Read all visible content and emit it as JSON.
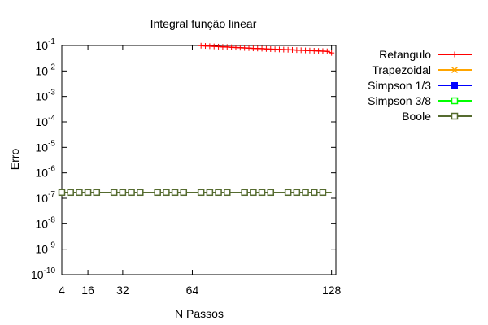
{
  "chart_data": {
    "type": "line",
    "title": "Integral função linear",
    "xlabel": "N Passos",
    "ylabel": "Erro",
    "xlim": [
      4,
      130
    ],
    "ylim_exponent": [
      -10,
      -1
    ],
    "y_scale": "log",
    "grid": false,
    "legend_position": "top-right outside",
    "x_ticks": [
      {
        "value": 4,
        "label": "4"
      },
      {
        "value": 16,
        "label": "16"
      },
      {
        "value": 32,
        "label": "32"
      },
      {
        "value": 64,
        "label": "64"
      },
      {
        "value": 128,
        "label": "128"
      }
    ],
    "y_ticks": [
      {
        "exp": -1,
        "label": "-1"
      },
      {
        "exp": -2,
        "label": "-2"
      },
      {
        "exp": -3,
        "label": "-3"
      },
      {
        "exp": -4,
        "label": "-4"
      },
      {
        "exp": -5,
        "label": "-5"
      },
      {
        "exp": -6,
        "label": "-6"
      },
      {
        "exp": -7,
        "label": "-7"
      },
      {
        "exp": -8,
        "label": "-8"
      },
      {
        "exp": -9,
        "label": "-9"
      },
      {
        "exp": -10,
        "label": "-10"
      }
    ],
    "series": [
      {
        "name": "Retangulo",
        "color": "#ff0000",
        "marker": "cross",
        "x": [
          68,
          70,
          72,
          74,
          76,
          78,
          80,
          82,
          84,
          86,
          88,
          90,
          92,
          94,
          96,
          98,
          100,
          102,
          104,
          106,
          108,
          110,
          112,
          114,
          116,
          118,
          120,
          122,
          124,
          126,
          128
        ],
        "y": [
          0.098,
          0.096,
          0.094,
          0.092,
          0.09,
          0.088,
          0.087,
          0.085,
          0.083,
          0.082,
          0.08,
          0.079,
          0.077,
          0.076,
          0.075,
          0.073,
          0.072,
          0.071,
          0.07,
          0.069,
          0.068,
          0.067,
          0.066,
          0.065,
          0.064,
          0.063,
          0.062,
          0.061,
          0.06,
          0.059,
          0.051
        ]
      },
      {
        "name": "Trapezoidal",
        "color": "#ffa500",
        "marker": "x",
        "x": [],
        "y": []
      },
      {
        "name": "Simpson 1/3",
        "color": "#0000ff",
        "marker": "filled-square",
        "x": [],
        "y": []
      },
      {
        "name": "Simpson 3/8",
        "color": "#00ff00",
        "marker": "open-square",
        "x": [],
        "y": []
      },
      {
        "name": "Boole",
        "color": "#556b2f",
        "marker": "open-square",
        "x": [
          4,
          8,
          12,
          16,
          20,
          24,
          28,
          32,
          36,
          40,
          44,
          48,
          52,
          56,
          60,
          64,
          68,
          72,
          76,
          80,
          84,
          88,
          92,
          96,
          100,
          104,
          108,
          112,
          116,
          120,
          124,
          128
        ],
        "y": [
          1.7e-07,
          1.7e-07,
          1.7e-07,
          1.7e-07,
          1.7e-07,
          1.7e-07,
          1.7e-07,
          1.7e-07,
          1.7e-07,
          1.7e-07,
          1.7e-07,
          1.7e-07,
          1.7e-07,
          1.7e-07,
          1.7e-07,
          1.7e-07,
          1.7e-07,
          1.7e-07,
          1.7e-07,
          1.7e-07,
          1.7e-07,
          1.7e-07,
          1.7e-07,
          1.7e-07,
          1.7e-07,
          1.7e-07,
          1.7e-07,
          1.7e-07,
          1.7e-07,
          1.7e-07,
          1.7e-07,
          1.7e-07
        ],
        "markers_at": [
          4,
          8,
          12,
          16,
          20,
          28,
          32,
          36,
          40,
          48,
          52,
          56,
          60,
          68,
          72,
          76,
          80,
          88,
          92,
          96,
          100,
          108,
          112,
          116,
          120,
          124
        ]
      }
    ]
  }
}
